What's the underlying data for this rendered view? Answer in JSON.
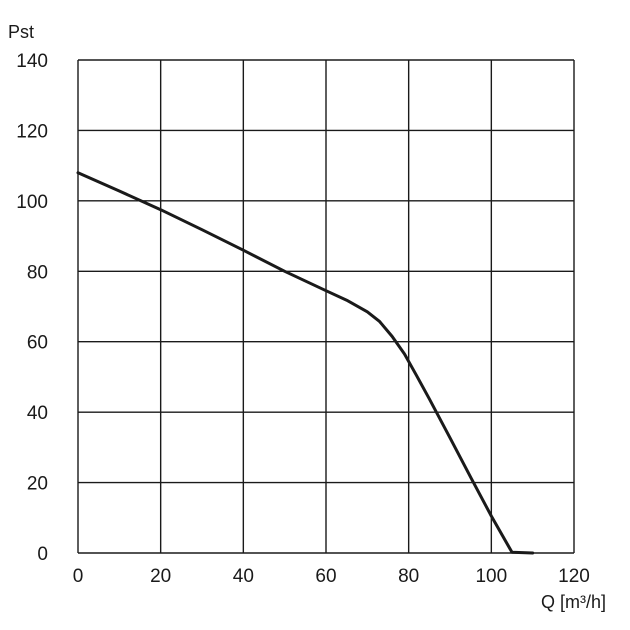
{
  "chart_data": {
    "type": "line",
    "title": "",
    "xlabel": "Q [m³/h]",
    "ylabel": "Pst",
    "xlim": [
      0,
      120
    ],
    "ylim": [
      0,
      140
    ],
    "xticks": [
      0,
      20,
      40,
      60,
      80,
      100,
      120
    ],
    "yticks": [
      0,
      20,
      40,
      60,
      80,
      100,
      120,
      140
    ],
    "xtick_labels": [
      "0",
      "20",
      "40",
      "60",
      "80",
      "100",
      "120"
    ],
    "ytick_labels": [
      "0",
      "20",
      "40",
      "60",
      "80",
      "100",
      "120",
      "140"
    ],
    "grid": true,
    "series": [
      {
        "color": "#1a1a1a",
        "x": [
          0,
          10,
          20,
          30,
          40,
          50,
          60,
          65,
          70,
          73,
          76,
          79,
          82,
          85,
          90,
          95,
          100,
          105,
          110
        ],
        "y": [
          108,
          102.8,
          97.5,
          91.8,
          86,
          80,
          74.5,
          71.8,
          68.5,
          65.7,
          61.5,
          56.5,
          50.2,
          43.8,
          32.7,
          21.5,
          10.5,
          0.2,
          0
        ]
      }
    ]
  }
}
